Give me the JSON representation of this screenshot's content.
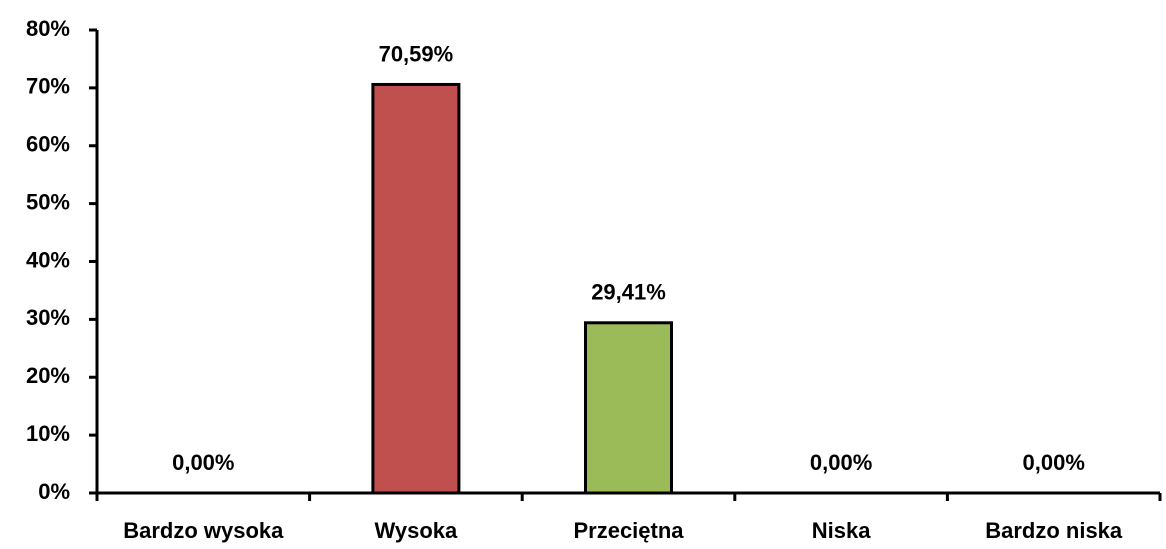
{
  "chart_data": {
    "type": "bar",
    "categories": [
      "Bardzo wysoka",
      "Wysoka",
      "Przeciętna",
      "Niska",
      "Bardzo niska"
    ],
    "values": [
      0,
      70.59,
      29.41,
      0,
      0
    ],
    "value_labels": [
      "0,00%",
      "70,59%",
      "29,41%",
      "0,00%",
      "0,00%"
    ],
    "colors": [
      "#4f81bd",
      "#c0504d",
      "#9bbb59",
      "#8064a2",
      "#4bacc6"
    ],
    "ylim": [
      0,
      80
    ],
    "yticks": [
      {
        "value": 0,
        "label": "0%"
      },
      {
        "value": 10,
        "label": "10%"
      },
      {
        "value": 20,
        "label": "20%"
      },
      {
        "value": 30,
        "label": "30%"
      },
      {
        "value": 40,
        "label": "40%"
      },
      {
        "value": 50,
        "label": "50%"
      },
      {
        "value": 60,
        "label": "60%"
      },
      {
        "value": 70,
        "label": "70%"
      },
      {
        "value": 80,
        "label": "80%"
      }
    ],
    "grid": false
  }
}
